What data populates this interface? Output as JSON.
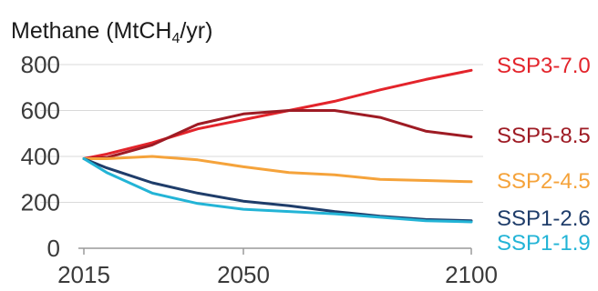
{
  "chart_data": {
    "type": "line",
    "title": "Methane (MtCH4/yr)",
    "title_parts": {
      "base": "Methane (MtCH",
      "sub": "4",
      "end": "/yr)"
    },
    "xlabel": "",
    "ylabel": "",
    "x_ticks": [
      2015,
      2050,
      2100
    ],
    "y_ticks": [
      0,
      200,
      400,
      600,
      800
    ],
    "xlim": [
      2015,
      2100
    ],
    "ylim": [
      0,
      800
    ],
    "grid": true,
    "legend": "direct labels at right",
    "series": [
      {
        "name": "SSP3-7.0",
        "color": "#e3242b",
        "x": [
          2015,
          2020,
          2030,
          2040,
          2050,
          2060,
          2070,
          2080,
          2090,
          2100
        ],
        "values": [
          390,
          410,
          460,
          520,
          560,
          600,
          640,
          690,
          735,
          775
        ]
      },
      {
        "name": "SSP5-8.5",
        "color": "#9e1b24",
        "x": [
          2015,
          2020,
          2030,
          2040,
          2050,
          2060,
          2070,
          2080,
          2090,
          2100
        ],
        "values": [
          390,
          395,
          450,
          540,
          585,
          600,
          600,
          570,
          510,
          485
        ]
      },
      {
        "name": "SSP2-4.5",
        "color": "#f5a33b",
        "x": [
          2015,
          2020,
          2030,
          2040,
          2050,
          2060,
          2070,
          2080,
          2090,
          2100
        ],
        "values": [
          390,
          390,
          400,
          385,
          355,
          330,
          320,
          300,
          295,
          290
        ]
      },
      {
        "name": "SSP1-2.6",
        "color": "#1f3d6a",
        "x": [
          2015,
          2020,
          2030,
          2040,
          2050,
          2060,
          2070,
          2080,
          2090,
          2100
        ],
        "values": [
          390,
          350,
          285,
          240,
          205,
          185,
          160,
          140,
          125,
          120
        ]
      },
      {
        "name": "SSP1-1.9",
        "color": "#23b4d6",
        "x": [
          2015,
          2020,
          2030,
          2040,
          2050,
          2060,
          2070,
          2080,
          2090,
          2100
        ],
        "values": [
          390,
          330,
          240,
          195,
          170,
          160,
          150,
          135,
          120,
          115
        ]
      }
    ]
  }
}
